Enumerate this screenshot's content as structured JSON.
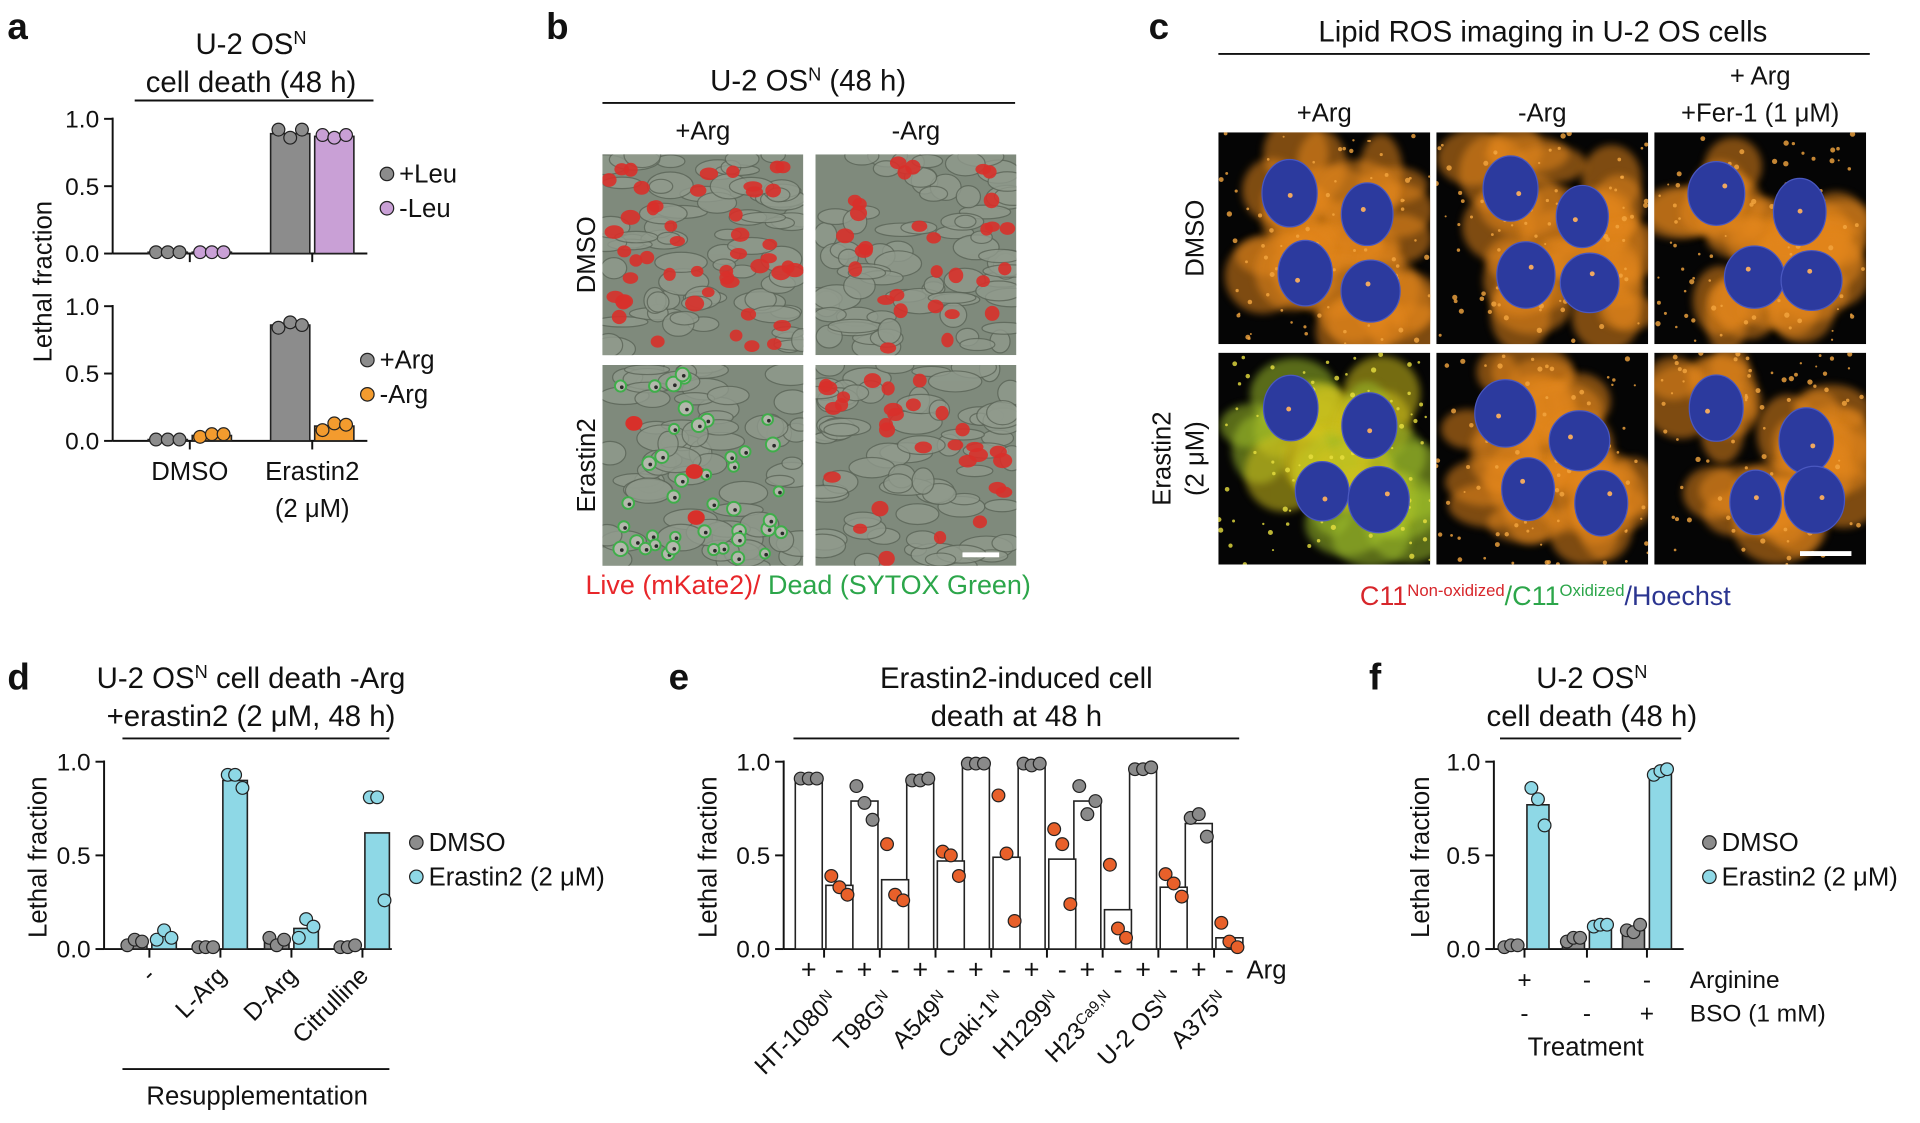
{
  "chart_data": [
    {
      "panel": "a",
      "type": "bar",
      "title": [
        [
          {
            "text": "U-2 OS"
          },
          {
            "text": "N",
            "sup": true
          }
        ],
        [
          {
            "text": "cell death (48 h)"
          }
        ]
      ],
      "ylabel": "Lethal fraction",
      "ylim": [
        0,
        1
      ],
      "yticks": [
        {
          "value": 0,
          "label": "0.0"
        },
        {
          "value": 0.5,
          "label": "0.5"
        },
        {
          "value": 1,
          "label": "1.0"
        }
      ],
      "legend": "right",
      "series": [
        {
          "name": "+Leu",
          "color": "#8c8c8c",
          "values": [
            0.01,
            0.89
          ],
          "points": [
            [
              0.01,
              0.01,
              0.01
            ],
            [
              0.92,
              0.86,
              0.92
            ]
          ]
        },
        {
          "name": "-Leu",
          "color": "#c9a0d6",
          "values": [
            0.01,
            0.87
          ],
          "points": [
            [
              0.01,
              0.01,
              0.01
            ],
            [
              0.88,
              0.86,
              0.88
            ]
          ]
        }
      ]
    },
    {
      "type": "bar",
      "categories": [
        [
          "DMSO"
        ],
        [
          "Erastin2",
          "(2 μM)"
        ]
      ],
      "ylim": [
        0,
        1
      ],
      "yticks": [
        {
          "value": 0,
          "label": "0.0"
        },
        {
          "value": 0.5,
          "label": "0.5"
        },
        {
          "value": 1,
          "label": "1.0"
        }
      ],
      "legend": "right",
      "series": [
        {
          "name": "+Arg",
          "color": "#8c8c8c",
          "values": [
            0.01,
            0.86
          ],
          "points": [
            [
              0.01,
              0.01,
              0.01
            ],
            [
              0.84,
              0.88,
              0.86
            ]
          ]
        },
        {
          "name": "-Arg",
          "color": "#f39b2e",
          "values": [
            0.04,
            0.11
          ],
          "points": [
            [
              0.03,
              0.05,
              0.05
            ],
            [
              0.08,
              0.13,
              0.12
            ]
          ]
        }
      ]
    },
    {
      "panel": "d",
      "type": "bar",
      "title": [
        [
          {
            "text": "U-2 OS"
          },
          {
            "text": "N",
            "sup": true
          },
          {
            "text": " cell death -Arg"
          }
        ],
        [
          {
            "text": "+erastin2 (2 μM, 48 h)"
          }
        ]
      ],
      "ylabel": "Lethal fraction",
      "categories": [
        "-",
        "L-Arg",
        "D-Arg",
        "Citrulline"
      ],
      "xlabel": "Resupplementation",
      "ylim": [
        0,
        1
      ],
      "yticks": [
        {
          "value": 0,
          "label": "0.0"
        },
        {
          "value": 0.5,
          "label": "0.5"
        },
        {
          "value": 1,
          "label": "1.0"
        }
      ],
      "legend": "right",
      "series": [
        {
          "name": "DMSO",
          "color": "#8c8c8c",
          "values": [
            0.03,
            0.01,
            0.04,
            0.01
          ],
          "points": [
            [
              0.02,
              0.05,
              0.04
            ],
            [
              0.01,
              0.01,
              0.01
            ],
            [
              0.06,
              0.02,
              0.05
            ],
            [
              0.01,
              0.01,
              0.02
            ]
          ]
        },
        {
          "name": "Erastin2 (2 μM)",
          "color": "#8ed8e6",
          "values": [
            0.07,
            0.9,
            0.11,
            0.62
          ],
          "points": [
            [
              0.05,
              0.1,
              0.06
            ],
            [
              0.93,
              0.93,
              0.86
            ],
            [
              0.06,
              0.16,
              0.12
            ],
            [
              0.81,
              0.81,
              0.26
            ]
          ]
        }
      ]
    },
    {
      "panel": "e",
      "type": "bar",
      "bar_fill": "#ffffff",
      "title": [
        [
          {
            "text": "Erastin2-induced cell"
          }
        ],
        [
          {
            "text": "death at 48 h"
          }
        ]
      ],
      "ylabel": "Lethal fraction",
      "categories": [
        [
          {
            "text": "HT-1080"
          },
          {
            "text": "N",
            "sup": true
          }
        ],
        [
          {
            "text": "T98G"
          },
          {
            "text": "N",
            "sup": true
          }
        ],
        [
          {
            "text": "A549"
          },
          {
            "text": "N",
            "sup": true
          }
        ],
        [
          {
            "text": "Caki-1"
          },
          {
            "text": "N",
            "sup": true
          }
        ],
        [
          {
            "text": "H1299"
          },
          {
            "text": "N",
            "sup": true
          }
        ],
        [
          {
            "text": "H23"
          },
          {
            "text": "Ca9,N",
            "sup": true
          }
        ],
        [
          {
            "text": "U-2 OS"
          },
          {
            "text": "N",
            "sup": true
          }
        ],
        [
          {
            "text": "A375"
          },
          {
            "text": "N",
            "sup": true
          }
        ]
      ],
      "xlabel": "Arg",
      "ylim": [
        0,
        1
      ],
      "yticks": [
        {
          "value": 0,
          "label": "0.0"
        },
        {
          "value": 0.5,
          "label": "0.5"
        },
        {
          "value": 1,
          "label": "1.0"
        }
      ],
      "series": [
        {
          "name": "+",
          "color": "#8a8a8a",
          "values": [
            0.91,
            0.79,
            0.9,
            0.99,
            0.99,
            0.79,
            0.96,
            0.67
          ],
          "points": [
            [
              0.91,
              0.91,
              0.91
            ],
            [
              0.87,
              0.78,
              0.69
            ],
            [
              0.9,
              0.9,
              0.91
            ],
            [
              0.99,
              0.99,
              0.99
            ],
            [
              0.99,
              0.98,
              0.99
            ],
            [
              0.87,
              0.72,
              0.79
            ],
            [
              0.96,
              0.96,
              0.97
            ],
            [
              0.7,
              0.72,
              0.6
            ]
          ]
        },
        {
          "name": "-",
          "color": "#e8602a",
          "values": [
            0.34,
            0.37,
            0.47,
            0.49,
            0.48,
            0.21,
            0.33,
            0.06
          ],
          "points": [
            [
              0.39,
              0.33,
              0.29
            ],
            [
              0.56,
              0.29,
              0.26
            ],
            [
              0.52,
              0.5,
              0.39
            ],
            [
              0.82,
              0.51,
              0.15
            ],
            [
              0.64,
              0.56,
              0.24
            ],
            [
              0.45,
              0.11,
              0.06
            ],
            [
              0.4,
              0.35,
              0.28
            ],
            [
              0.14,
              0.04,
              0.01
            ]
          ]
        }
      ]
    },
    {
      "panel": "f",
      "type": "bar",
      "title": [
        [
          {
            "text": "U-2 OS"
          },
          {
            "text": "N",
            "sup": true
          }
        ],
        [
          {
            "text": "cell death (48 h)"
          }
        ]
      ],
      "ylabel": "Lethal fraction",
      "conditions": [
        {
          "name": "Arginine",
          "values": [
            "+",
            "-",
            "-"
          ]
        },
        {
          "name": "BSO (1 mM)",
          "values": [
            "-",
            "-",
            "+"
          ]
        }
      ],
      "xlabel": "Treatment",
      "ylim": [
        0,
        1
      ],
      "yticks": [
        {
          "value": 0,
          "label": "0.0"
        },
        {
          "value": 0.5,
          "label": "0.5"
        },
        {
          "value": 1,
          "label": "1.0"
        }
      ],
      "legend": "right",
      "series": [
        {
          "name": "DMSO",
          "color": "#8c8c8c",
          "values": [
            0.02,
            0.05,
            0.1
          ],
          "points": [
            [
              0.01,
              0.02,
              0.02
            ],
            [
              0.04,
              0.06,
              0.06
            ],
            [
              0.1,
              0.09,
              0.13
            ]
          ]
        },
        {
          "name": "Erastin2 (2 μM)",
          "color": "#8ed8e6",
          "values": [
            0.77,
            0.13,
            0.94
          ],
          "points": [
            [
              0.86,
              0.8,
              0.66
            ],
            [
              0.12,
              0.13,
              0.13
            ],
            [
              0.93,
              0.95,
              0.96
            ]
          ]
        }
      ]
    }
  ],
  "images": [
    {
      "panel": "b",
      "title": [
        [
          {
            "text": "U-2 OS"
          },
          {
            "text": "N",
            "sup": true
          },
          {
            "text": " (48 h)"
          }
        ]
      ],
      "columns": [
        [
          "+Arg"
        ],
        [
          "-Arg"
        ]
      ],
      "rows": [
        [
          "DMSO"
        ],
        [
          "Erastin2"
        ]
      ],
      "caption": [
        {
          "text": "Live (mKate2)/",
          "color": "#e8262a"
        },
        {
          "text": " Dead (SYTOX Green)",
          "color": "#2ca64a"
        }
      ]
    },
    {
      "panel": "c",
      "title": [
        [
          {
            "text": "Lipid ROS imaging in U-2 OS cells"
          }
        ]
      ],
      "columns": [
        [
          "+Arg"
        ],
        [
          "-Arg"
        ],
        [
          "+ Arg",
          "+Fer-1 (1 μM)"
        ]
      ],
      "rows": [
        [
          "DMSO"
        ],
        [
          "Erastin2",
          "(2 μM)"
        ]
      ],
      "caption": [
        {
          "text": "C11",
          "color": "#d7262b"
        },
        {
          "text": "Non-oxidized",
          "sup": true,
          "color": "#d7262b"
        },
        {
          "text": "/C11",
          "color": "#2ca64a"
        },
        {
          "text": "Oxidized",
          "sup": true,
          "color": "#2ca64a"
        },
        {
          "text": "/Hoechst",
          "color": "#2b3590"
        }
      ]
    }
  ]
}
